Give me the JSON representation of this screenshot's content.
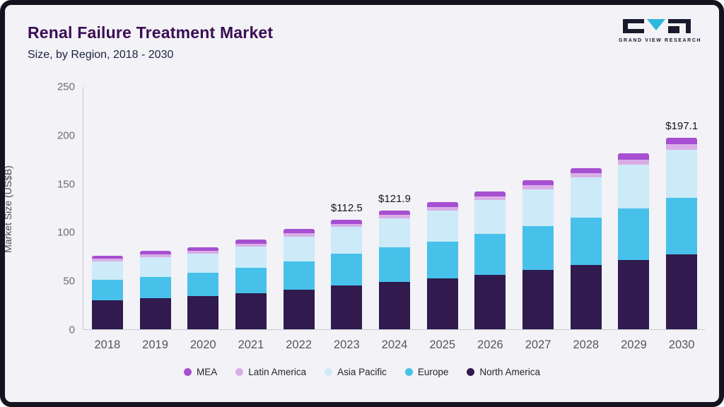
{
  "frame": {
    "background": "#f3f2f6",
    "border_color": "#14141e"
  },
  "header": {
    "title": "Renal Failure Treatment Market",
    "subtitle": "Size, by Region, 2018 - 2030"
  },
  "logo": {
    "text": "GRAND VIEW RESEARCH",
    "accent_color": "#2bb8d9",
    "dark_color": "#1a1a2e"
  },
  "chart_data": {
    "type": "bar",
    "stacked": true,
    "title": "Renal Failure Treatment Market Size, by Region, 2018 - 2030",
    "ylabel": "Market Size (US$B)",
    "ylim": [
      0,
      250
    ],
    "yticks": [
      0,
      50,
      100,
      150,
      200,
      250
    ],
    "grid": false,
    "legend_position": "bottom",
    "categories": [
      "2018",
      "2019",
      "2020",
      "2021",
      "2022",
      "2023",
      "2024",
      "2025",
      "2026",
      "2027",
      "2028",
      "2029",
      "2030"
    ],
    "series": [
      {
        "name": "North America",
        "color": "#301a4e",
        "values": [
          30,
          32,
          34,
          37,
          41,
          45,
          49,
          52,
          56,
          61,
          66,
          71,
          77
        ]
      },
      {
        "name": "Europe",
        "color": "#47c1ea",
        "values": [
          21,
          22,
          24,
          26,
          29,
          33,
          35,
          38,
          42,
          45,
          49,
          53,
          58
        ]
      },
      {
        "name": "Asia Pacific",
        "color": "#cdeaf8",
        "values": [
          19,
          20,
          20,
          22,
          25,
          27.5,
          30,
          32,
          35,
          38,
          41,
          45,
          49.5
        ]
      },
      {
        "name": "Latin America",
        "color": "#d9aee6",
        "values": [
          2.5,
          3,
          2.5,
          3,
          3.5,
          3,
          3.9,
          4,
          4,
          4,
          4.5,
          5.5,
          5.6
        ]
      },
      {
        "name": "MEA",
        "color": "#a64fd1",
        "values": [
          3,
          4,
          3.5,
          4,
          4.5,
          4,
          4,
          5,
          5,
          5,
          5.5,
          6.5,
          7
        ]
      }
    ],
    "annotations": [
      {
        "category": "2023",
        "text": "$112.5"
      },
      {
        "category": "2024",
        "text": "$121.9"
      },
      {
        "category": "2030",
        "text": "$197.1"
      }
    ],
    "legend": [
      "MEA",
      "Latin America",
      "Asia Pacific",
      "Europe",
      "North America"
    ]
  }
}
